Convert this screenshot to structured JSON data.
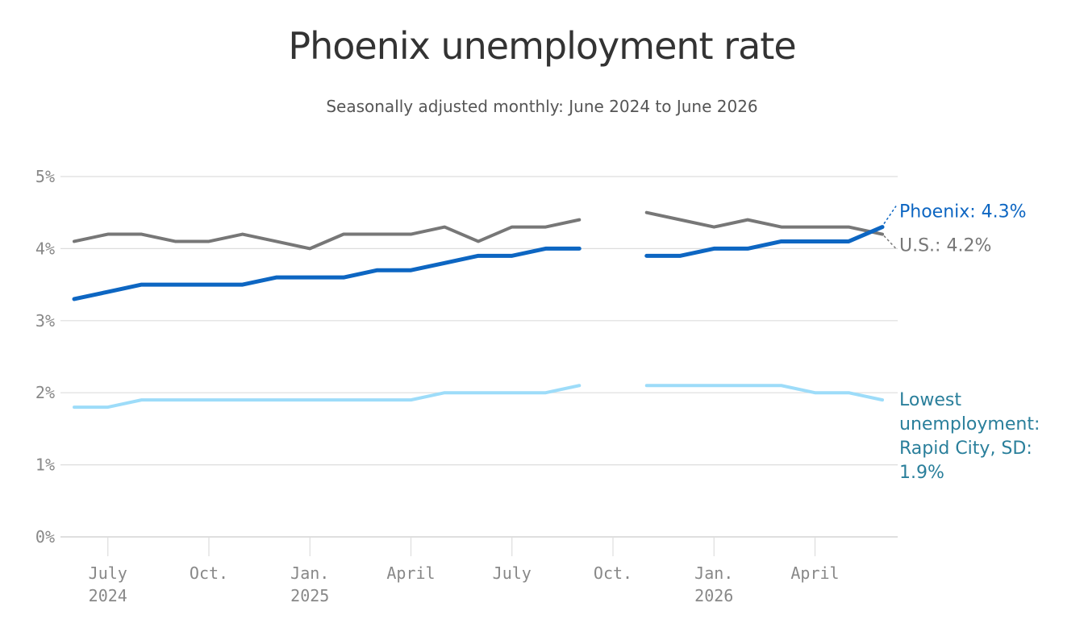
{
  "title": "Phoenix unemployment rate",
  "subtitle": "Seasonally adjusted monthly: June 2024 to June 2026",
  "colors": {
    "phoenix": "#0d66c2",
    "us": "#777777",
    "lowest": "#9ddcf9",
    "lowest_label": "#2a7f9b",
    "grid": "#dddddd"
  },
  "chart_data": {
    "type": "line",
    "title": "Phoenix unemployment rate",
    "subtitle": "Seasonally adjusted monthly: June 2024 to June 2026",
    "y_tick_labels": [
      "0%",
      "1%",
      "2%",
      "3%",
      "4%",
      "5%"
    ],
    "ylim": [
      0,
      5
    ],
    "grid": true,
    "x_tick_labels": [
      [
        "July",
        "2024"
      ],
      [
        "Oct.",
        ""
      ],
      [
        "Jan.",
        "2025"
      ],
      [
        "April",
        ""
      ],
      [
        "July",
        ""
      ],
      [
        "Oct.",
        ""
      ],
      [
        "Jan.",
        "2026"
      ],
      [
        "April",
        ""
      ]
    ],
    "x_tick_months": [
      "2024-07",
      "2024-10",
      "2025-01",
      "2025-04",
      "2025-07",
      "2025-10",
      "2026-01",
      "2026-04"
    ],
    "x": [
      "2024-06",
      "2024-07",
      "2024-08",
      "2024-09",
      "2024-10",
      "2024-11",
      "2024-12",
      "2025-01",
      "2025-02",
      "2025-03",
      "2025-04",
      "2025-05",
      "2025-06",
      "2025-07",
      "2025-08",
      "2025-09",
      "2025-10",
      "2025-11",
      "2025-12",
      "2026-01",
      "2026-02",
      "2026-03",
      "2026-04",
      "2026-05",
      "2026-06"
    ],
    "series": [
      {
        "key": "us",
        "label": "U.S.: 4.2%",
        "values": [
          4.1,
          4.2,
          4.2,
          4.1,
          4.1,
          4.2,
          4.1,
          4.0,
          4.2,
          4.2,
          4.2,
          4.3,
          4.1,
          4.3,
          4.3,
          4.4,
          null,
          4.5,
          4.4,
          4.3,
          4.4,
          4.3,
          4.3,
          4.3,
          4.2
        ]
      },
      {
        "key": "phoenix",
        "label": "Phoenix: 4.3%",
        "values": [
          3.3,
          3.4,
          3.5,
          3.5,
          3.5,
          3.5,
          3.6,
          3.6,
          3.6,
          3.7,
          3.7,
          3.8,
          3.9,
          3.9,
          4.0,
          4.0,
          null,
          3.9,
          3.9,
          4.0,
          4.0,
          4.1,
          4.1,
          4.1,
          4.3
        ]
      },
      {
        "key": "lowest",
        "label": "Lowest unemployment: Rapid City, SD: 1.9%",
        "label_lines": [
          "Lowest",
          "unemployment:",
          "Rapid City, SD:",
          "1.9%"
        ],
        "values": [
          1.8,
          1.8,
          1.9,
          1.9,
          1.9,
          1.9,
          1.9,
          1.9,
          1.9,
          1.9,
          1.9,
          2.0,
          2.0,
          2.0,
          2.0,
          2.1,
          null,
          2.1,
          2.1,
          2.1,
          2.1,
          2.1,
          2.0,
          2.0,
          1.9
        ]
      }
    ]
  }
}
